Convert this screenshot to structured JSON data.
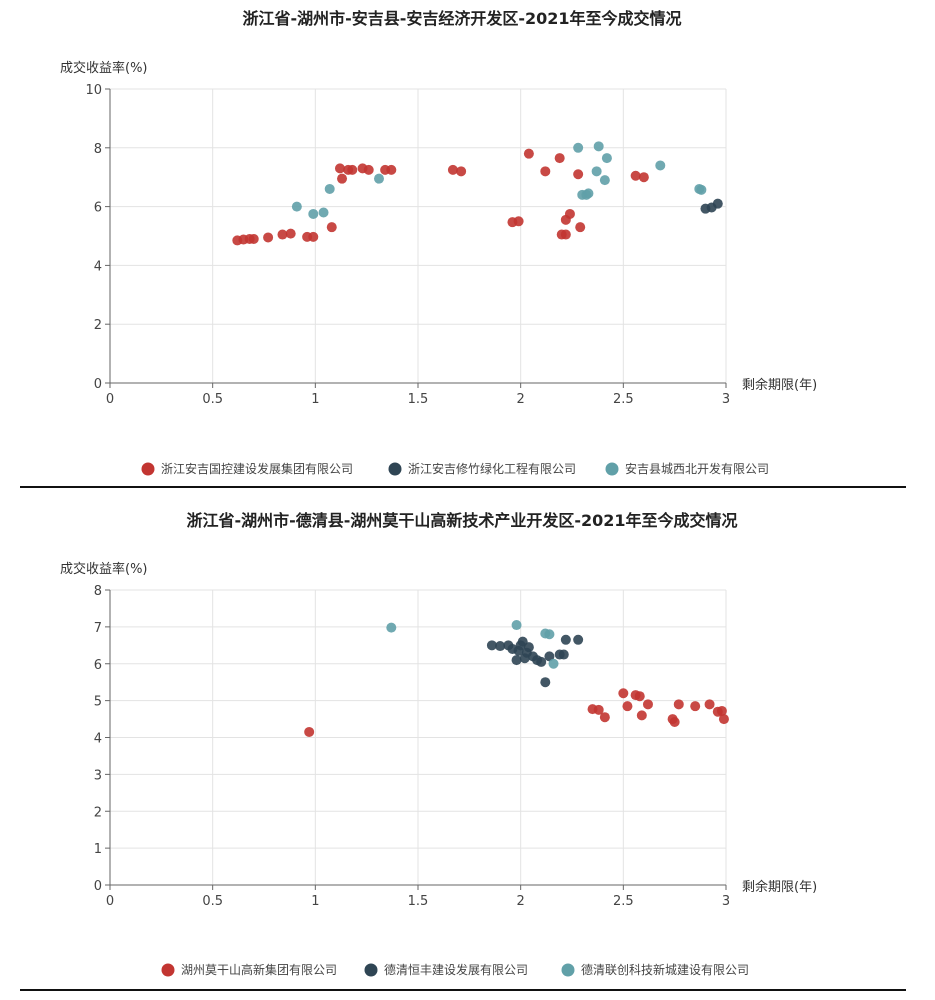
{
  "chart_data": [
    {
      "type": "scatter",
      "title": "浙江省-湖州市-安吉县-安吉经济开发区-2021年至今成交情况",
      "ylabel": "成交收益率(%)",
      "xlabel": "剩余期限(年)",
      "xlim": [
        0,
        3
      ],
      "ylim": [
        0,
        10
      ],
      "xticks": [
        0,
        0.5,
        1,
        1.5,
        2,
        2.5,
        3
      ],
      "xtick_labels": [
        "0",
        "0.5",
        "1",
        "1.5",
        "2",
        "2.5",
        "3"
      ],
      "yticks": [
        0,
        2,
        4,
        6,
        8,
        10
      ],
      "ytick_labels": [
        "0",
        "2",
        "4",
        "6",
        "8",
        "10"
      ],
      "grid": true,
      "legend": "bottom-center",
      "series": [
        {
          "name": "浙江安吉国控建设发展集团有限公司",
          "color": "#c23531",
          "points": [
            [
              0.62,
              4.85
            ],
            [
              0.65,
              4.88
            ],
            [
              0.68,
              4.9
            ],
            [
              0.7,
              4.9
            ],
            [
              0.77,
              4.95
            ],
            [
              0.84,
              5.05
            ],
            [
              0.88,
              5.08
            ],
            [
              0.96,
              4.97
            ],
            [
              0.99,
              4.97
            ],
            [
              1.08,
              5.3
            ],
            [
              1.12,
              7.3
            ],
            [
              1.13,
              6.95
            ],
            [
              1.16,
              7.25
            ],
            [
              1.18,
              7.25
            ],
            [
              1.23,
              7.3
            ],
            [
              1.26,
              7.25
            ],
            [
              1.34,
              7.25
            ],
            [
              1.37,
              7.25
            ],
            [
              1.67,
              7.25
            ],
            [
              1.71,
              7.2
            ],
            [
              1.96,
              5.47
            ],
            [
              1.99,
              5.5
            ],
            [
              2.04,
              7.8
            ],
            [
              2.12,
              7.2
            ],
            [
              2.19,
              7.65
            ],
            [
              2.2,
              5.05
            ],
            [
              2.22,
              5.05
            ],
            [
              2.22,
              5.55
            ],
            [
              2.24,
              5.75
            ],
            [
              2.28,
              7.1
            ],
            [
              2.29,
              5.3
            ],
            [
              2.56,
              7.05
            ],
            [
              2.6,
              7.0
            ]
          ]
        },
        {
          "name": "浙江安吉修竹绿化工程有限公司",
          "color": "#2f4554",
          "points": [
            [
              2.9,
              5.93
            ],
            [
              2.93,
              5.97
            ],
            [
              2.96,
              6.1
            ]
          ]
        },
        {
          "name": "安吉县城西北开发有限公司",
          "color": "#61a0a8",
          "points": [
            [
              0.91,
              6.0
            ],
            [
              0.99,
              5.75
            ],
            [
              1.04,
              5.8
            ],
            [
              1.07,
              6.6
            ],
            [
              1.31,
              6.95
            ],
            [
              2.28,
              8.0
            ],
            [
              2.3,
              6.4
            ],
            [
              2.32,
              6.4
            ],
            [
              2.33,
              6.45
            ],
            [
              2.37,
              7.2
            ],
            [
              2.38,
              8.05
            ],
            [
              2.41,
              6.9
            ],
            [
              2.42,
              7.65
            ],
            [
              2.68,
              7.4
            ],
            [
              2.87,
              6.6
            ],
            [
              2.88,
              6.57
            ]
          ]
        }
      ]
    },
    {
      "type": "scatter",
      "title": "浙江省-湖州市-德清县-湖州莫干山高新技术产业开发区-2021年至今成交情况",
      "ylabel": "成交收益率(%)",
      "xlabel": "剩余期限(年)",
      "xlim": [
        0,
        3
      ],
      "ylim": [
        0,
        8
      ],
      "xticks": [
        0,
        0.5,
        1,
        1.5,
        2,
        2.5,
        3
      ],
      "xtick_labels": [
        "0",
        "0.5",
        "1",
        "1.5",
        "2",
        "2.5",
        "3"
      ],
      "yticks": [
        0,
        1,
        2,
        3,
        4,
        5,
        6,
        7,
        8
      ],
      "ytick_labels": [
        "0",
        "1",
        "2",
        "3",
        "4",
        "5",
        "6",
        "7",
        "8"
      ],
      "grid": true,
      "legend": "bottom-center",
      "series": [
        {
          "name": "湖州莫干山高新集团有限公司",
          "color": "#c23531",
          "points": [
            [
              0.97,
              4.15
            ],
            [
              2.35,
              4.77
            ],
            [
              2.38,
              4.75
            ],
            [
              2.41,
              4.55
            ],
            [
              2.5,
              5.2
            ],
            [
              2.52,
              4.85
            ],
            [
              2.56,
              5.15
            ],
            [
              2.58,
              5.12
            ],
            [
              2.59,
              4.6
            ],
            [
              2.62,
              4.9
            ],
            [
              2.74,
              4.5
            ],
            [
              2.75,
              4.42
            ],
            [
              2.77,
              4.9
            ],
            [
              2.85,
              4.85
            ],
            [
              2.92,
              4.9
            ],
            [
              2.96,
              4.7
            ],
            [
              2.98,
              4.72
            ],
            [
              2.99,
              4.5
            ]
          ]
        },
        {
          "name": "德清恒丰建设发展有限公司",
          "color": "#2f4554",
          "points": [
            [
              1.86,
              6.5
            ],
            [
              1.9,
              6.48
            ],
            [
              1.94,
              6.5
            ],
            [
              1.96,
              6.4
            ],
            [
              1.98,
              6.1
            ],
            [
              1.99,
              6.35
            ],
            [
              2.0,
              6.5
            ],
            [
              2.01,
              6.6
            ],
            [
              2.02,
              6.15
            ],
            [
              2.03,
              6.3
            ],
            [
              2.04,
              6.45
            ],
            [
              2.06,
              6.2
            ],
            [
              2.08,
              6.1
            ],
            [
              2.1,
              6.05
            ],
            [
              2.12,
              5.5
            ],
            [
              2.14,
              6.2
            ],
            [
              2.19,
              6.25
            ],
            [
              2.21,
              6.25
            ],
            [
              2.22,
              6.65
            ],
            [
              2.28,
              6.65
            ]
          ]
        },
        {
          "name": "德清联创科技新城建设有限公司",
          "color": "#61a0a8",
          "points": [
            [
              1.37,
              6.98
            ],
            [
              1.98,
              7.05
            ],
            [
              2.12,
              6.82
            ],
            [
              2.14,
              6.8
            ],
            [
              2.16,
              6.0
            ]
          ]
        }
      ]
    }
  ]
}
